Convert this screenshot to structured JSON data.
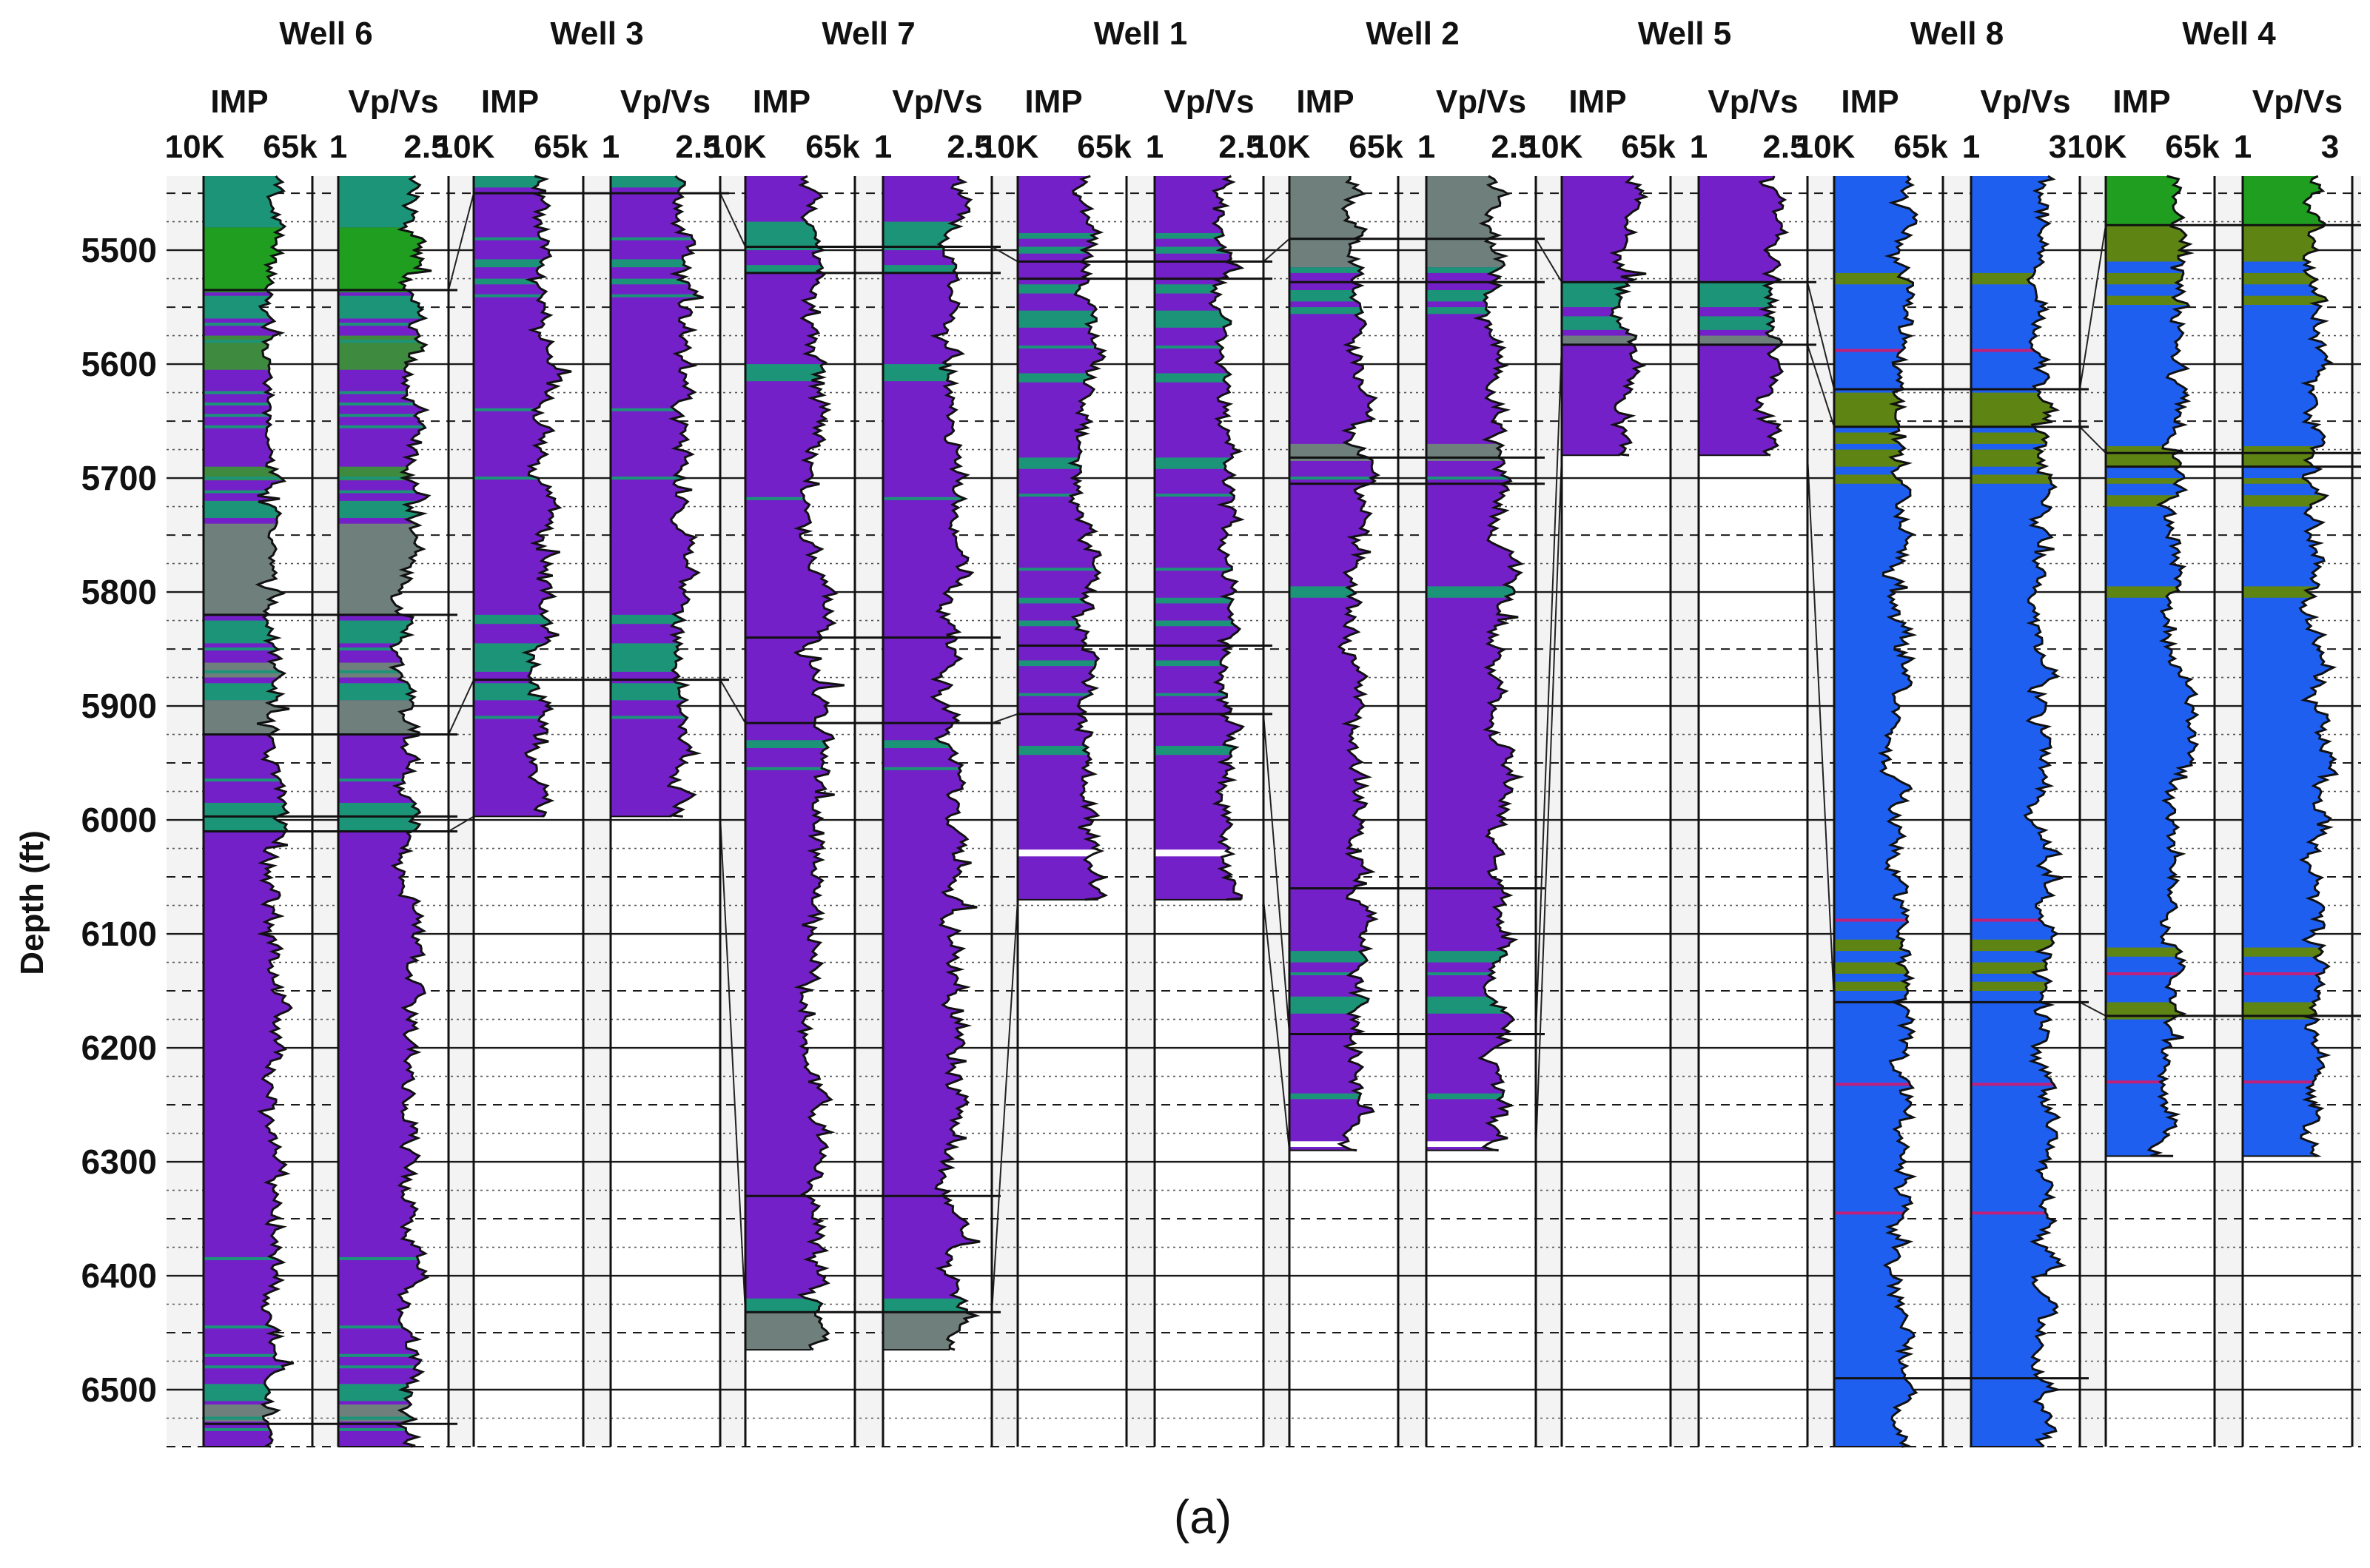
{
  "chart_data": {
    "type": "well_log_correlation_panel",
    "ylabel": "Depth (ft)",
    "ylim": [
      5435,
      6550
    ],
    "y_ticks": [
      5500,
      5600,
      5700,
      5800,
      5900,
      6000,
      6100,
      6200,
      6300,
      6400,
      6500
    ],
    "y_tick_labels": [
      "5500",
      "5600",
      "5700",
      "5800",
      "5900",
      "6000",
      "6100",
      "6200",
      "6300",
      "6400",
      "6500"
    ],
    "caption": "(a)",
    "facies_colors": {
      "purple": "#7420c8",
      "teal": "#1c9478",
      "gray": "#6f7f7c",
      "blue": "#1f5ff0",
      "bright_green": "#1f9e1f",
      "olive": "#5e8514",
      "green": "#3e8a3e"
    },
    "wells": [
      {
        "name": "Well 6",
        "bg": "purple",
        "log_top": 5435,
        "log_bottom": 6550,
        "tracks": [
          {
            "title": "IMP",
            "scale_min": "10K",
            "scale_max": "65k"
          },
          {
            "title": "Vp/Vs",
            "scale_min": "1",
            "scale_max": "2.5"
          }
        ],
        "blocks": [
          {
            "top": 5435,
            "bottom": 5480,
            "color": "teal"
          },
          {
            "top": 5480,
            "bottom": 5537,
            "color": "bright_green"
          },
          {
            "top": 5540,
            "bottom": 5560,
            "color": "teal"
          },
          {
            "top": 5575,
            "bottom": 5605,
            "color": "green"
          },
          {
            "top": 5690,
            "bottom": 5702,
            "color": "green"
          },
          {
            "top": 5720,
            "bottom": 5735,
            "color": "teal"
          },
          {
            "top": 5740,
            "bottom": 5820,
            "color": "gray"
          },
          {
            "top": 5825,
            "bottom": 5845,
            "color": "teal"
          },
          {
            "top": 5862,
            "bottom": 5875,
            "color": "gray"
          },
          {
            "top": 5880,
            "bottom": 5895,
            "color": "teal"
          },
          {
            "top": 5895,
            "bottom": 5925,
            "color": "gray"
          },
          {
            "top": 5985,
            "bottom": 6010,
            "color": "teal"
          },
          {
            "top": 6495,
            "bottom": 6510,
            "color": "teal"
          },
          {
            "top": 6513,
            "bottom": 6528,
            "color": "gray"
          }
        ],
        "thin_lines": [
          5565,
          5580,
          5625,
          5635,
          5645,
          5655,
          5700,
          5712,
          5850,
          5870,
          5965,
          6385,
          6445,
          6470,
          6480,
          6525,
          6535
        ],
        "markers": [
          5535,
          5820,
          5925,
          5997,
          6010,
          6530
        ]
      },
      {
        "name": "Well 3",
        "bg": "purple",
        "log_top": 5435,
        "log_bottom": 5997,
        "tracks": [
          {
            "title": "IMP",
            "scale_min": "10K",
            "scale_max": "65k"
          },
          {
            "title": "Vp/Vs",
            "scale_min": "1",
            "scale_max": "2.5"
          }
        ],
        "blocks": [
          {
            "top": 5435,
            "bottom": 5445,
            "color": "teal"
          },
          {
            "top": 5508,
            "bottom": 5515,
            "color": "teal"
          },
          {
            "top": 5525,
            "bottom": 5530,
            "color": "teal"
          },
          {
            "top": 5820,
            "bottom": 5828,
            "color": "teal"
          },
          {
            "top": 5845,
            "bottom": 5870,
            "color": "teal"
          },
          {
            "top": 5880,
            "bottom": 5895,
            "color": "teal"
          }
        ],
        "thin_lines": [
          5490,
          5540,
          5640,
          5700,
          5910
        ],
        "markers": [
          5450,
          5877
        ]
      },
      {
        "name": "Well 7",
        "bg": "purple",
        "log_top": 5435,
        "log_bottom": 6465,
        "tracks": [
          {
            "title": "IMP",
            "scale_min": "10K",
            "scale_max": "65k"
          },
          {
            "title": "Vp/Vs",
            "scale_min": "1",
            "scale_max": "2.5"
          }
        ],
        "blocks": [
          {
            "top": 5475,
            "bottom": 5500,
            "color": "teal"
          },
          {
            "top": 5513,
            "bottom": 5520,
            "color": "teal"
          },
          {
            "top": 5600,
            "bottom": 5615,
            "color": "teal"
          },
          {
            "top": 5930,
            "bottom": 5937,
            "color": "teal"
          },
          {
            "top": 6420,
            "bottom": 6432,
            "color": "teal"
          },
          {
            "top": 6432,
            "bottom": 6465,
            "color": "gray"
          }
        ],
        "thin_lines": [
          5718,
          5955
        ],
        "markers": [
          5497,
          5520,
          5840,
          5915,
          6330,
          6432
        ]
      },
      {
        "name": "Well 1",
        "bg": "purple",
        "log_top": 5435,
        "log_bottom": 6070,
        "tracks": [
          {
            "title": "IMP",
            "scale_min": "10K",
            "scale_max": "65k"
          },
          {
            "title": "Vp/Vs",
            "scale_min": "1",
            "scale_max": "2.5"
          }
        ],
        "blocks": [
          {
            "top": 5485,
            "bottom": 5490,
            "color": "teal"
          },
          {
            "top": 5497,
            "bottom": 5503,
            "color": "teal"
          },
          {
            "top": 5530,
            "bottom": 5538,
            "color": "teal"
          },
          {
            "top": 5553,
            "bottom": 5568,
            "color": "teal"
          },
          {
            "top": 5608,
            "bottom": 5616,
            "color": "teal"
          },
          {
            "top": 5682,
            "bottom": 5692,
            "color": "teal"
          },
          {
            "top": 5805,
            "bottom": 5810,
            "color": "teal"
          },
          {
            "top": 5825,
            "bottom": 5830,
            "color": "teal"
          },
          {
            "top": 5860,
            "bottom": 5865,
            "color": "teal"
          },
          {
            "top": 5935,
            "bottom": 5943,
            "color": "teal"
          }
        ],
        "thin_lines": [
          5585,
          5715,
          5780,
          5890
        ],
        "white_gaps": [
          {
            "top": 6026,
            "bottom": 6032
          }
        ],
        "markers": [
          5510,
          5525,
          5847,
          5907
        ]
      },
      {
        "name": "Well 2",
        "bg": "purple",
        "log_top": 5435,
        "log_bottom": 6290,
        "tracks": [
          {
            "title": "IMP",
            "scale_min": "10K",
            "scale_max": "65k"
          },
          {
            "title": "Vp/Vs",
            "scale_min": "1",
            "scale_max": "2.5"
          }
        ],
        "blocks": [
          {
            "top": 5435,
            "bottom": 5515,
            "color": "gray"
          },
          {
            "top": 5515,
            "bottom": 5520,
            "color": "teal"
          },
          {
            "top": 5535,
            "bottom": 5545,
            "color": "teal"
          },
          {
            "top": 5550,
            "bottom": 5556,
            "color": "teal"
          },
          {
            "top": 5670,
            "bottom": 5685,
            "color": "gray"
          },
          {
            "top": 5795,
            "bottom": 5805,
            "color": "teal"
          },
          {
            "top": 6115,
            "bottom": 6125,
            "color": "teal"
          },
          {
            "top": 6155,
            "bottom": 6170,
            "color": "teal"
          },
          {
            "top": 6240,
            "bottom": 6245,
            "color": "teal"
          }
        ],
        "thin_lines": [
          5700,
          6135
        ],
        "white_gaps": [
          {
            "top": 6282,
            "bottom": 6287
          }
        ],
        "markers": [
          5490,
          5528,
          5682,
          5705,
          6060,
          6188
        ]
      },
      {
        "name": "Well 5",
        "bg": "purple",
        "log_top": 5435,
        "log_bottom": 5680,
        "tracks": [
          {
            "title": "IMP",
            "scale_min": "10K",
            "scale_max": "65k"
          },
          {
            "title": "Vp/Vs",
            "scale_min": "1",
            "scale_max": "2.5"
          }
        ],
        "blocks": [
          {
            "top": 5527,
            "bottom": 5550,
            "color": "teal"
          },
          {
            "top": 5558,
            "bottom": 5570,
            "color": "teal"
          },
          {
            "top": 5575,
            "bottom": 5582,
            "color": "gray"
          }
        ],
        "thin_lines": [],
        "markers": [
          5528,
          5583
        ]
      },
      {
        "name": "Well 8",
        "bg": "blue",
        "log_top": 5435,
        "log_bottom": 6550,
        "tracks": [
          {
            "title": "IMP",
            "scale_min": "10K",
            "scale_max": "65k"
          },
          {
            "title": "Vp/Vs",
            "scale_min": "1",
            "scale_max": "3"
          }
        ],
        "blocks": [
          {
            "top": 5520,
            "bottom": 5530,
            "color": "olive"
          },
          {
            "top": 5625,
            "bottom": 5655,
            "color": "olive"
          },
          {
            "top": 5660,
            "bottom": 5670,
            "color": "olive"
          },
          {
            "top": 5675,
            "bottom": 5690,
            "color": "olive"
          },
          {
            "top": 5697,
            "bottom": 5705,
            "color": "olive"
          },
          {
            "top": 6105,
            "bottom": 6115,
            "color": "olive"
          },
          {
            "top": 6125,
            "bottom": 6135,
            "color": "olive"
          },
          {
            "top": 6142,
            "bottom": 6150,
            "color": "olive"
          }
        ],
        "thin_lines": [
          5588,
          6088,
          6232,
          6345
        ],
        "markers": [
          5622,
          5655,
          6160,
          6490
        ]
      },
      {
        "name": "Well 4",
        "bg": "blue",
        "log_top": 5435,
        "log_bottom": 6295,
        "tracks": [
          {
            "title": "IMP",
            "scale_min": "10K",
            "scale_max": "65k"
          },
          {
            "title": "Vp/Vs",
            "scale_min": "1",
            "scale_max": "3"
          }
        ],
        "blocks": [
          {
            "top": 5435,
            "bottom": 5478,
            "color": "bright_green"
          },
          {
            "top": 5478,
            "bottom": 5510,
            "color": "olive"
          },
          {
            "top": 5520,
            "bottom": 5530,
            "color": "olive"
          },
          {
            "top": 5540,
            "bottom": 5548,
            "color": "olive"
          },
          {
            "top": 5672,
            "bottom": 5690,
            "color": "olive"
          },
          {
            "top": 5700,
            "bottom": 5705,
            "color": "olive"
          },
          {
            "top": 5715,
            "bottom": 5725,
            "color": "olive"
          },
          {
            "top": 5795,
            "bottom": 5805,
            "color": "olive"
          },
          {
            "top": 6112,
            "bottom": 6120,
            "color": "olive"
          },
          {
            "top": 6160,
            "bottom": 6175,
            "color": "olive"
          }
        ],
        "thin_lines": [
          6135,
          6230
        ],
        "markers": [
          5478,
          5678,
          5690,
          6172
        ]
      }
    ],
    "correlations": [
      [
        5535,
        5450,
        5497,
        5510,
        5490,
        5528,
        5622,
        5478
      ],
      [
        5925,
        5877,
        5915,
        5907,
        6188,
        5583,
        5655,
        5678
      ],
      [
        6010,
        5997,
        6432,
        6070,
        6290,
        5680,
        6160,
        6172
      ]
    ]
  }
}
